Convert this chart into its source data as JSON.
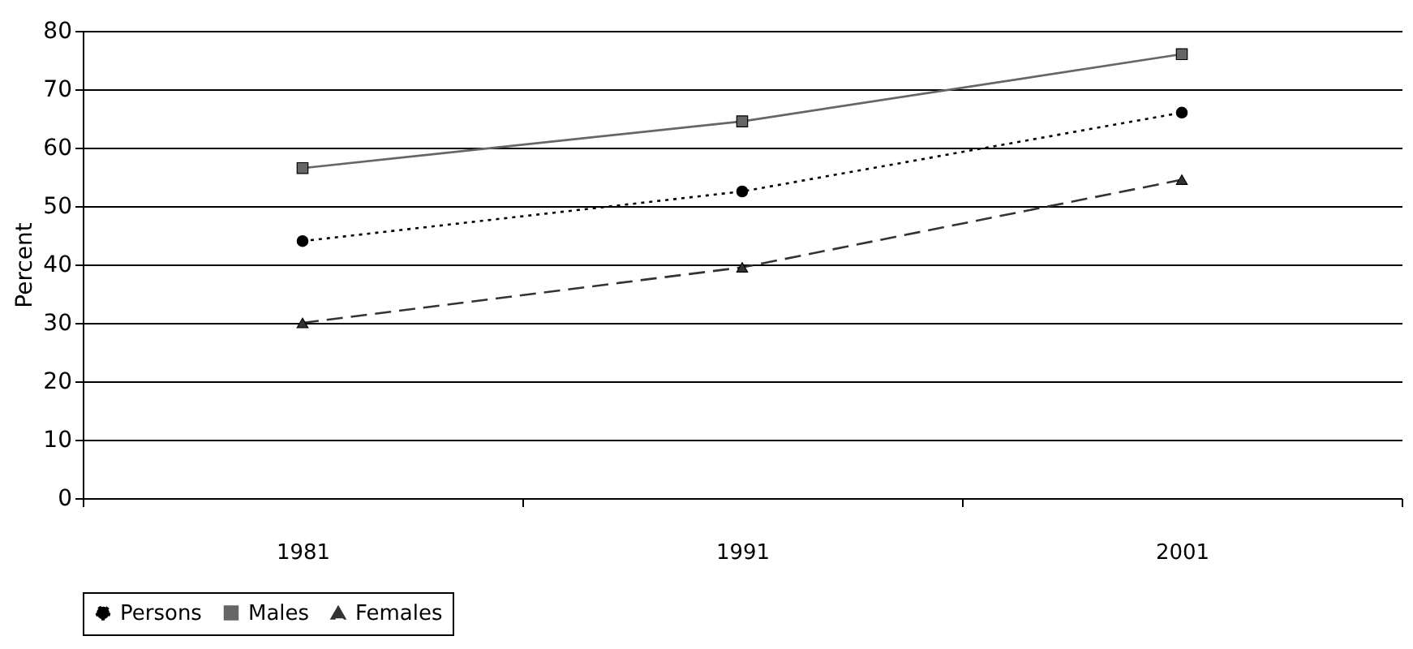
{
  "chart_data": {
    "type": "line",
    "ylabel": "Percent",
    "categories": [
      "1981",
      "1991",
      "2001"
    ],
    "series": [
      {
        "name": "Persons",
        "color": "#000000",
        "values": [
          44,
          52.5,
          66
        ],
        "marker": "circle",
        "line_style": "dotted"
      },
      {
        "name": "Males",
        "color": "#666666",
        "values": [
          56.5,
          64.5,
          76
        ],
        "marker": "square",
        "line_style": "solid"
      },
      {
        "name": "Females",
        "color": "#333333",
        "values": [
          30,
          39.5,
          54.5
        ],
        "marker": "triangle",
        "line_style": "dashed"
      }
    ],
    "ylim": [
      0,
      80
    ],
    "yticks": [
      0,
      10,
      20,
      30,
      40,
      50,
      60,
      70,
      80
    ],
    "grid": "y",
    "legend": "bottom"
  }
}
